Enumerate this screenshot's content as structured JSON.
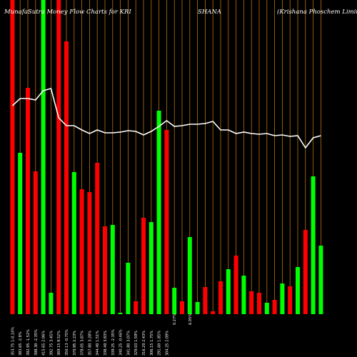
{
  "header": {
    "left": "MunafaSutra  Money Flow  Charts for KRI",
    "mid": "SHANA",
    "right": "(Krishana  Phoschem Limit"
  },
  "chart_data": {
    "type": "bar",
    "title": "MunafaSutra Money Flow Charts for KRISHANA (Krishana Phoschem Limit",
    "ylim": [
      0,
      440
    ],
    "grid": "vertical",
    "colors": {
      "up": "#00ff00",
      "down": "#ff0000",
      "line": "#ffffff",
      "grid": "#b8720f",
      "label": "#ffffff"
    },
    "series": [
      {
        "values": [
          440,
          226,
          317,
          200,
          440,
          30,
          440,
          382,
          199,
          175,
          171,
          212,
          123,
          125,
          2,
          72,
          18,
          135,
          129,
          285,
          258,
          37,
          18,
          108,
          17,
          38,
          4,
          46,
          63,
          82,
          54,
          32,
          30,
          16,
          20,
          43,
          39,
          66,
          118,
          193,
          96
        ]
      },
      {
        "values": [
          292,
          302,
          302,
          300,
          313,
          316,
          275,
          264,
          264,
          258,
          253,
          258,
          254,
          254,
          255,
          257,
          256,
          251,
          256,
          263,
          271,
          263,
          264,
          266,
          266,
          267,
          270,
          258,
          258,
          253,
          255,
          253,
          252,
          253,
          250,
          251,
          249,
          250,
          233,
          247,
          250
        ]
      }
    ],
    "directions": [
      "down",
      "up",
      "down",
      "down",
      "up",
      "up",
      "down",
      "down",
      "up",
      "down",
      "down",
      "down",
      "down",
      "up",
      "up",
      "up",
      "down",
      "down",
      "up",
      "up",
      "down",
      "up",
      "down",
      "up",
      "up",
      "down",
      "down",
      "down",
      "up",
      "down",
      "up",
      "down",
      "down",
      "up",
      "down",
      "up",
      "down",
      "up",
      "down",
      "up",
      "up"
    ],
    "categories": [
      "353.75 1-0.14%",
      "383.65 -2.8%",
      "392.95 -1.52%",
      "398.30 -2.35%",
      "415.65 2.06%",
      "392.75 3.45%",
      "369.15 8.52%",
      "350.13 -0.75%",
      "370.95 2.23%",
      "378.05 3.87%",
      "357.80 3.28%",
      "344.40 1.51%",
      "338.40 3.83%",
      "339.25 -2.35%",
      "340.25 -0.46%",
      "341.80 3.07%",
      "329.03 1.59%",
      "316.20 2.43%",
      "306.15 1.75%",
      "291.60 1.85%",
      "304.25 2.09%",
      "",
      "",
      "",
      "",
      "",
      "",
      "",
      "",
      "",
      "",
      "",
      "",
      "",
      "",
      "",
      "",
      "",
      "",
      "",
      ""
    ],
    "bar_annotations": [
      "0.27%",
      "6.05%"
    ]
  }
}
